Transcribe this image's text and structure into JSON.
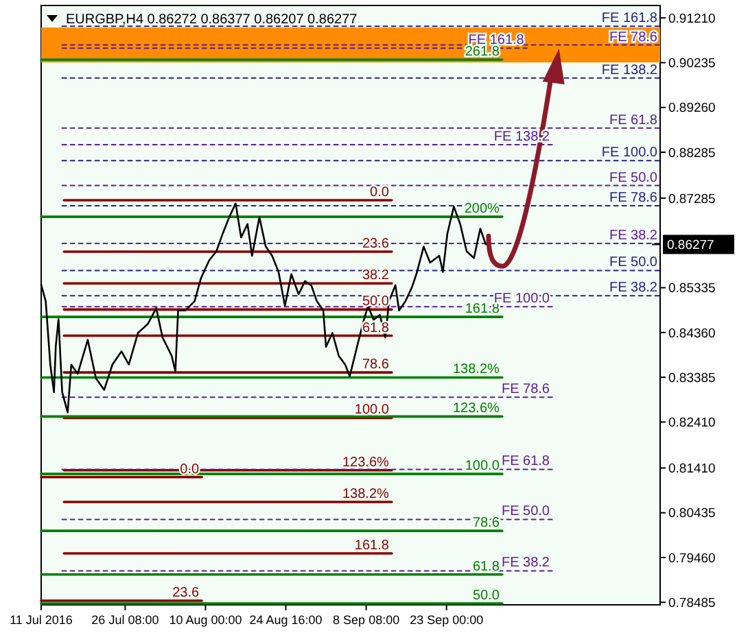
{
  "chart_data": {
    "type": "line",
    "title": "EURGBP,H4  0.86272 0.86377 0.86207 0.86277",
    "xlim": [
      "2016-07-11T00:00",
      "2016-11-01T00:00"
    ],
    "ylim": [
      0.7843,
      0.9148
    ],
    "xticks": [
      {
        "value": "2016-07-11T00:00",
        "label": "11 Jul 2016"
      },
      {
        "value": "2016-07-26T08:00",
        "label": "26 Jul 08:00"
      },
      {
        "value": "2016-08-10T00:00",
        "label": "10 Aug 00:00"
      },
      {
        "value": "2016-08-24T16:00",
        "label": "24 Aug 16:00"
      },
      {
        "value": "2016-09-08T08:00",
        "label": "8 Sep 08:00"
      },
      {
        "value": "2016-09-23T00:00",
        "label": "23 Sep 00:00"
      }
    ],
    "yticks": [
      {
        "value": 0.9121,
        "label": "0.91210"
      },
      0.90235,
      {
        "value": 0.8926,
        "label": "0.89260"
      },
      0.88285,
      0.87285,
      0.85335,
      {
        "value": 0.8436,
        "label": "0.84360"
      },
      0.83385,
      {
        "value": 0.8241,
        "label": "0.82410"
      },
      {
        "value": 0.8141,
        "label": "0.81410"
      },
      0.80435,
      {
        "value": 0.7946,
        "label": "0.79460"
      },
      0.78485
    ],
    "grid": false,
    "bands": [
      {
        "axis": "y",
        "from": 0.9024,
        "to": 0.91,
        "color": "#ff8c00"
      }
    ],
    "ref_lines": [
      {
        "axis": "y",
        "value": 0.86277,
        "label": "0.86277",
        "color": "#000000"
      }
    ],
    "series": [
      {
        "x": [
          "2016-07-15T04:00",
          "2016-09-13T00:00"
        ],
        "values": [
          0.8724,
          0.8724
        ],
        "color": "#8b0000",
        "line_style": "solid"
      },
      {
        "x": [
          "2016-07-15T04:00",
          "2016-09-13T00:00"
        ],
        "values": [
          0.8612,
          0.8612
        ],
        "color": "#8b0000",
        "line_style": "solid"
      },
      {
        "x": [
          "2016-07-15T04:00",
          "2016-09-13T00:00"
        ],
        "values": [
          0.8543,
          0.8543
        ],
        "color": "#8b0000",
        "line_style": "solid"
      },
      {
        "x": [
          "2016-07-15T04:00",
          "2016-09-13T00:00"
        ],
        "values": [
          0.8486,
          0.8486
        ],
        "color": "#8b0000",
        "line_style": "solid"
      },
      {
        "x": [
          "2016-07-15T04:00",
          "2016-09-13T00:00"
        ],
        "values": [
          0.8429,
          0.8429
        ],
        "color": "#8b0000",
        "line_style": "solid"
      },
      {
        "x": [
          "2016-07-15T04:00",
          "2016-09-13T00:00"
        ],
        "values": [
          0.8349,
          0.8349
        ],
        "color": "#8b0000",
        "line_style": "solid"
      },
      {
        "x": [
          "2016-07-15T04:00",
          "2016-09-13T00:00"
        ],
        "values": [
          0.825,
          0.825
        ],
        "color": "#8b0000",
        "line_style": "solid"
      },
      {
        "x": [
          "2016-07-15T04:00",
          "2016-09-13T00:00"
        ],
        "values": [
          0.8136,
          0.8136
        ],
        "color": "#8b0000",
        "line_style": "solid"
      },
      {
        "x": [
          "2016-07-15T04:00",
          "2016-09-13T00:00"
        ],
        "values": [
          0.8067,
          0.8067
        ],
        "color": "#8b0000",
        "line_style": "solid"
      },
      {
        "x": [
          "2016-07-15T04:00",
          "2016-09-13T00:00"
        ],
        "values": [
          0.7955,
          0.7955
        ],
        "color": "#8b0000",
        "line_style": "solid"
      },
      {
        "x": [
          "2016-07-11T00:00",
          "2016-08-09T08:00"
        ],
        "values": [
          0.8121,
          0.8121
        ],
        "color": "#8b0000",
        "line_style": "solid"
      },
      {
        "x": [
          "2016-07-11T00:00",
          "2016-08-09T08:00"
        ],
        "values": [
          0.7852,
          0.7852
        ],
        "color": "#8b0000",
        "line_style": "solid"
      },
      {
        "x": [
          "2016-07-11T00:00",
          "2016-10-03T04:00"
        ],
        "values": [
          0.903,
          0.903
        ],
        "color": "#008000",
        "line_style": "solid"
      },
      {
        "x": [
          "2016-07-11T00:00",
          "2016-10-03T04:00"
        ],
        "values": [
          0.8688,
          0.8688
        ],
        "color": "#008000",
        "line_style": "solid"
      },
      {
        "x": [
          "2016-07-11T00:00",
          "2016-10-03T04:00"
        ],
        "values": [
          0.847,
          0.847
        ],
        "color": "#008000",
        "line_style": "solid"
      },
      {
        "x": [
          "2016-07-11T00:00",
          "2016-10-03T04:00"
        ],
        "values": [
          0.8338,
          0.8338
        ],
        "color": "#008000",
        "line_style": "solid"
      },
      {
        "x": [
          "2016-07-11T00:00",
          "2016-10-03T04:00"
        ],
        "values": [
          0.8253,
          0.8253
        ],
        "color": "#008000",
        "line_style": "solid"
      },
      {
        "x": [
          "2016-07-11T00:00",
          "2016-10-03T04:00"
        ],
        "values": [
          0.8128,
          0.8128
        ],
        "color": "#008000",
        "line_style": "solid"
      },
      {
        "x": [
          "2016-07-11T00:00",
          "2016-10-03T04:00"
        ],
        "values": [
          0.8004,
          0.8004
        ],
        "color": "#008000",
        "line_style": "solid"
      },
      {
        "x": [
          "2016-07-11T00:00",
          "2016-10-03T04:00"
        ],
        "values": [
          0.7909,
          0.7909
        ],
        "color": "#008000",
        "line_style": "solid"
      },
      {
        "x": [
          "2016-07-11T00:00",
          "2016-10-03T04:00"
        ],
        "values": [
          0.7846,
          0.7846
        ],
        "color": "#008000",
        "line_style": "solid"
      },
      {
        "x": [
          "2016-07-14T20:00",
          "2016-11-01T00:00"
        ],
        "values": [
          0.9103,
          0.9103
        ],
        "color": "#22228b",
        "line_style": "dashed"
      },
      {
        "x": [
          "2016-07-14T20:00",
          "2016-11-01T00:00"
        ],
        "values": [
          0.899,
          0.899
        ],
        "color": "#22228b",
        "line_style": "dashed"
      },
      {
        "x": [
          "2016-07-14T20:00",
          "2016-11-01T00:00"
        ],
        "values": [
          0.881,
          0.881
        ],
        "color": "#22228b",
        "line_style": "dashed"
      },
      {
        "x": [
          "2016-07-14T20:00",
          "2016-11-01T00:00"
        ],
        "values": [
          0.8712,
          0.8712
        ],
        "color": "#22228b",
        "line_style": "dashed"
      },
      {
        "x": [
          "2016-07-14T20:00",
          "2016-11-01T00:00"
        ],
        "values": [
          0.8571,
          0.8571
        ],
        "color": "#22228b",
        "line_style": "dashed"
      },
      {
        "x": [
          "2016-07-14T20:00",
          "2016-11-01T00:00"
        ],
        "values": [
          0.8516,
          0.8516
        ],
        "color": "#22228b",
        "line_style": "dashed"
      },
      {
        "x": [
          "2016-07-14T20:00",
          "2016-11-01T00:00"
        ],
        "values": [
          0.9062,
          0.9062
        ],
        "color": "#5c1a9c",
        "line_style": "dashed"
      },
      {
        "x": [
          "2016-07-14T20:00",
          "2016-11-01T00:00"
        ],
        "values": [
          0.8881,
          0.8881
        ],
        "color": "#5c1a9c",
        "line_style": "dashed"
      },
      {
        "x": [
          "2016-07-14T20:00",
          "2016-11-01T00:00"
        ],
        "values": [
          0.8756,
          0.8756
        ],
        "color": "#5c1a9c",
        "line_style": "dashed"
      },
      {
        "x": [
          "2016-07-14T20:00",
          "2016-11-01T00:00"
        ],
        "values": [
          0.863,
          0.863
        ],
        "color": "#5c1a9c",
        "line_style": "dashed"
      },
      {
        "x": [
          "2016-07-14T20:00",
          "2016-10-07T16:00"
        ],
        "values": [
          0.9055,
          0.9055
        ],
        "color": "#5c1a9c",
        "line_style": "dashed"
      },
      {
        "x": [
          "2016-07-14T20:00",
          "2016-10-12T08:00"
        ],
        "values": [
          0.8845,
          0.8845
        ],
        "color": "#5c1a9c",
        "line_style": "dashed"
      },
      {
        "x": [
          "2016-07-14T20:00",
          "2016-10-12T08:00"
        ],
        "values": [
          0.8492,
          0.8492
        ],
        "color": "#5c1a9c",
        "line_style": "dashed"
      },
      {
        "x": [
          "2016-07-14T20:00",
          "2016-10-12T08:00"
        ],
        "values": [
          0.8295,
          0.8295
        ],
        "color": "#5c1a9c",
        "line_style": "dashed"
      },
      {
        "x": [
          "2016-07-14T20:00",
          "2016-10-12T08:00"
        ],
        "values": [
          0.8138,
          0.8138
        ],
        "color": "#5c1a9c",
        "line_style": "dashed"
      },
      {
        "x": [
          "2016-07-14T20:00",
          "2016-10-12T08:00"
        ],
        "values": [
          0.8029,
          0.8029
        ],
        "color": "#5c1a9c",
        "line_style": "dashed"
      },
      {
        "x": [
          "2016-07-14T20:00",
          "2016-10-12T08:00"
        ],
        "values": [
          0.7917,
          0.7917
        ],
        "color": "#5c1a9c",
        "line_style": "dashed"
      },
      {
        "color": "#000000",
        "line_style": "solid",
        "x": [
          "2016-07-11T00:00",
          "2016-07-11T20:00",
          "2016-07-12T16:00",
          "2016-07-13T08:00",
          "2016-07-13T16:00",
          "2016-07-14T04:00",
          "2016-07-14T20:00",
          "2016-07-15T20:00",
          "2016-07-16T12:00",
          "2016-07-17T16:00",
          "2016-07-19T12:00",
          "2016-07-21T00:00",
          "2016-07-22T12:00",
          "2016-07-24T00:00",
          "2016-07-25T16:00",
          "2016-07-27T00:00",
          "2016-07-28T16:00",
          "2016-07-30T12:00",
          "2016-08-01T00:00",
          "2016-08-02T04:00",
          "2016-08-03T20:00",
          "2016-08-04T12:00",
          "2016-08-05T00:00",
          "2016-08-06T08:00",
          "2016-08-08T00:00",
          "2016-08-09T04:00",
          "2016-08-10T16:00",
          "2016-08-12T00:00",
          "2016-08-13T04:00",
          "2016-08-14T08:00",
          "2016-08-15T12:00",
          "2016-08-16T12:00",
          "2016-08-17T16:00",
          "2016-08-18T12:00",
          "2016-08-19T20:00",
          "2016-08-21T00:00",
          "2016-08-22T04:00",
          "2016-08-23T08:00",
          "2016-08-24T12:00",
          "2016-08-25T16:00",
          "2016-08-27T00:00",
          "2016-08-28T04:00",
          "2016-08-29T08:00",
          "2016-08-30T08:00",
          "2016-08-31T12:00",
          "2016-09-01T00:00",
          "2016-09-02T04:00",
          "2016-09-03T08:00",
          "2016-09-04T12:00",
          "2016-09-05T08:00",
          "2016-09-06T16:00",
          "2016-09-07T20:00",
          "2016-09-08T16:00",
          "2016-09-09T16:00",
          "2016-09-10T20:00",
          "2016-09-11T20:00",
          "2016-09-12T12:00",
          "2016-09-13T16:00",
          "2016-09-14T08:00",
          "2016-09-15T12:00",
          "2016-09-16T16:00",
          "2016-09-17T12:00",
          "2016-09-18T20:00",
          "2016-09-20T00:00",
          "2016-09-21T16:00",
          "2016-09-22T08:00",
          "2016-09-23T04:00",
          "2016-09-24T08:00",
          "2016-09-25T12:00",
          "2016-09-26T16:00",
          "2016-09-28T00:00",
          "2016-09-29T04:00",
          "2016-09-30T04:00"
        ],
        "values": [
          0.854,
          0.8504,
          0.8366,
          0.8306,
          0.8406,
          0.8465,
          0.8306,
          0.8262,
          0.8366,
          0.8346,
          0.842,
          0.8336,
          0.8311,
          0.8366,
          0.8395,
          0.8366,
          0.8435,
          0.8455,
          0.8489,
          0.8425,
          0.8385,
          0.8351,
          0.8484,
          0.8484,
          0.8504,
          0.8554,
          0.8593,
          0.8613,
          0.8652,
          0.8687,
          0.8717,
          0.8643,
          0.8672,
          0.8603,
          0.8687,
          0.8623,
          0.8603,
          0.8568,
          0.8494,
          0.8563,
          0.8519,
          0.8548,
          0.8538,
          0.8504,
          0.8484,
          0.8405,
          0.8435,
          0.8385,
          0.8366,
          0.8341,
          0.8405,
          0.846,
          0.8494,
          0.8464,
          0.8474,
          0.8425,
          0.8504,
          0.8539,
          0.8484,
          0.8504,
          0.8534,
          0.8563,
          0.8623,
          0.8588,
          0.8603,
          0.8568,
          0.8652,
          0.871,
          0.8672,
          0.8613,
          0.8598,
          0.8662,
          0.8628
        ]
      }
    ],
    "annotations": [
      {
        "text": "0.0",
        "x": "2016-09-13T00:00",
        "y": 0.8724
      },
      {
        "text": "23.6",
        "x": "2016-09-13T00:00",
        "y": 0.8612
      },
      {
        "text": "38.2",
        "x": "2016-09-13T00:00",
        "y": 0.8543
      },
      {
        "text": "50.0",
        "x": "2016-09-13T00:00",
        "y": 0.8486
      },
      {
        "text": "61.8",
        "x": "2016-09-13T00:00",
        "y": 0.8429
      },
      {
        "text": "78.6",
        "x": "2016-09-13T00:00",
        "y": 0.8349
      },
      {
        "text": "100.0",
        "x": "2016-09-13T00:00",
        "y": 0.825
      },
      {
        "text": "123.6%",
        "x": "2016-09-13T00:00",
        "y": 0.8136
      },
      {
        "text": "138.2%",
        "x": "2016-09-13T00:00",
        "y": 0.8067
      },
      {
        "text": "161.8",
        "x": "2016-09-13T00:00",
        "y": 0.7955
      },
      {
        "text": "0.0",
        "x": "2016-08-09T08:00",
        "y": 0.8121
      },
      {
        "text": "23.6",
        "x": "2016-08-09T08:00",
        "y": 0.7852
      },
      {
        "text": "261.8",
        "x": "2016-10-03T04:00",
        "y": 0.903
      },
      {
        "text": "200%",
        "x": "2016-10-03T04:00",
        "y": 0.8688
      },
      {
        "text": "161.8",
        "x": "2016-10-03T04:00",
        "y": 0.847
      },
      {
        "text": "138.2%",
        "x": "2016-10-03T04:00",
        "y": 0.8338
      },
      {
        "text": "123.6%",
        "x": "2016-10-03T04:00",
        "y": 0.8253
      },
      {
        "text": "100.0",
        "x": "2016-10-03T04:00",
        "y": 0.8128
      },
      {
        "text": "78.6",
        "x": "2016-10-03T04:00",
        "y": 0.8004
      },
      {
        "text": "61.8",
        "x": "2016-10-03T04:00",
        "y": 0.7909
      },
      {
        "text": "50.0",
        "x": "2016-10-03T04:00",
        "y": 0.7846
      },
      {
        "text": "FE 161.8",
        "x": "2016-11-01T00:00",
        "y": 0.9103
      },
      {
        "text": "FE 138.2",
        "x": "2016-11-01T00:00",
        "y": 0.899
      },
      {
        "text": "FE 100.0",
        "x": "2016-11-01T00:00",
        "y": 0.881
      },
      {
        "text": "FE 78.6",
        "x": "2016-11-01T00:00",
        "y": 0.8712
      },
      {
        "text": "FE 50.0",
        "x": "2016-11-01T00:00",
        "y": 0.8571
      },
      {
        "text": "FE 38.2",
        "x": "2016-11-01T00:00",
        "y": 0.8516
      },
      {
        "text": "FE 78.6",
        "x": "2016-11-01T00:00",
        "y": 0.9062
      },
      {
        "text": "FE 61.8",
        "x": "2016-11-01T00:00",
        "y": 0.8881
      },
      {
        "text": "FE 50.0",
        "x": "2016-11-01T00:00",
        "y": 0.8756
      },
      {
        "text": "FE 38.2",
        "x": "2016-11-01T00:00",
        "y": 0.863
      },
      {
        "text": "FE 161.8",
        "x": "2016-10-07T16:00",
        "y": 0.9055
      },
      {
        "text": "FE 138.2",
        "x": "2016-10-12T08:00",
        "y": 0.8845
      },
      {
        "text": "FE 100.0",
        "x": "2016-10-12T08:00",
        "y": 0.8492
      },
      {
        "text": "FE 78.6",
        "x": "2016-10-12T08:00",
        "y": 0.8295
      },
      {
        "text": "FE 61.8",
        "x": "2016-10-12T08:00",
        "y": 0.8138
      },
      {
        "text": "FE 50.0",
        "x": "2016-10-12T08:00",
        "y": 0.8029
      },
      {
        "text": "FE 38.2",
        "x": "2016-10-12T08:00",
        "y": 0.7917
      }
    ]
  }
}
